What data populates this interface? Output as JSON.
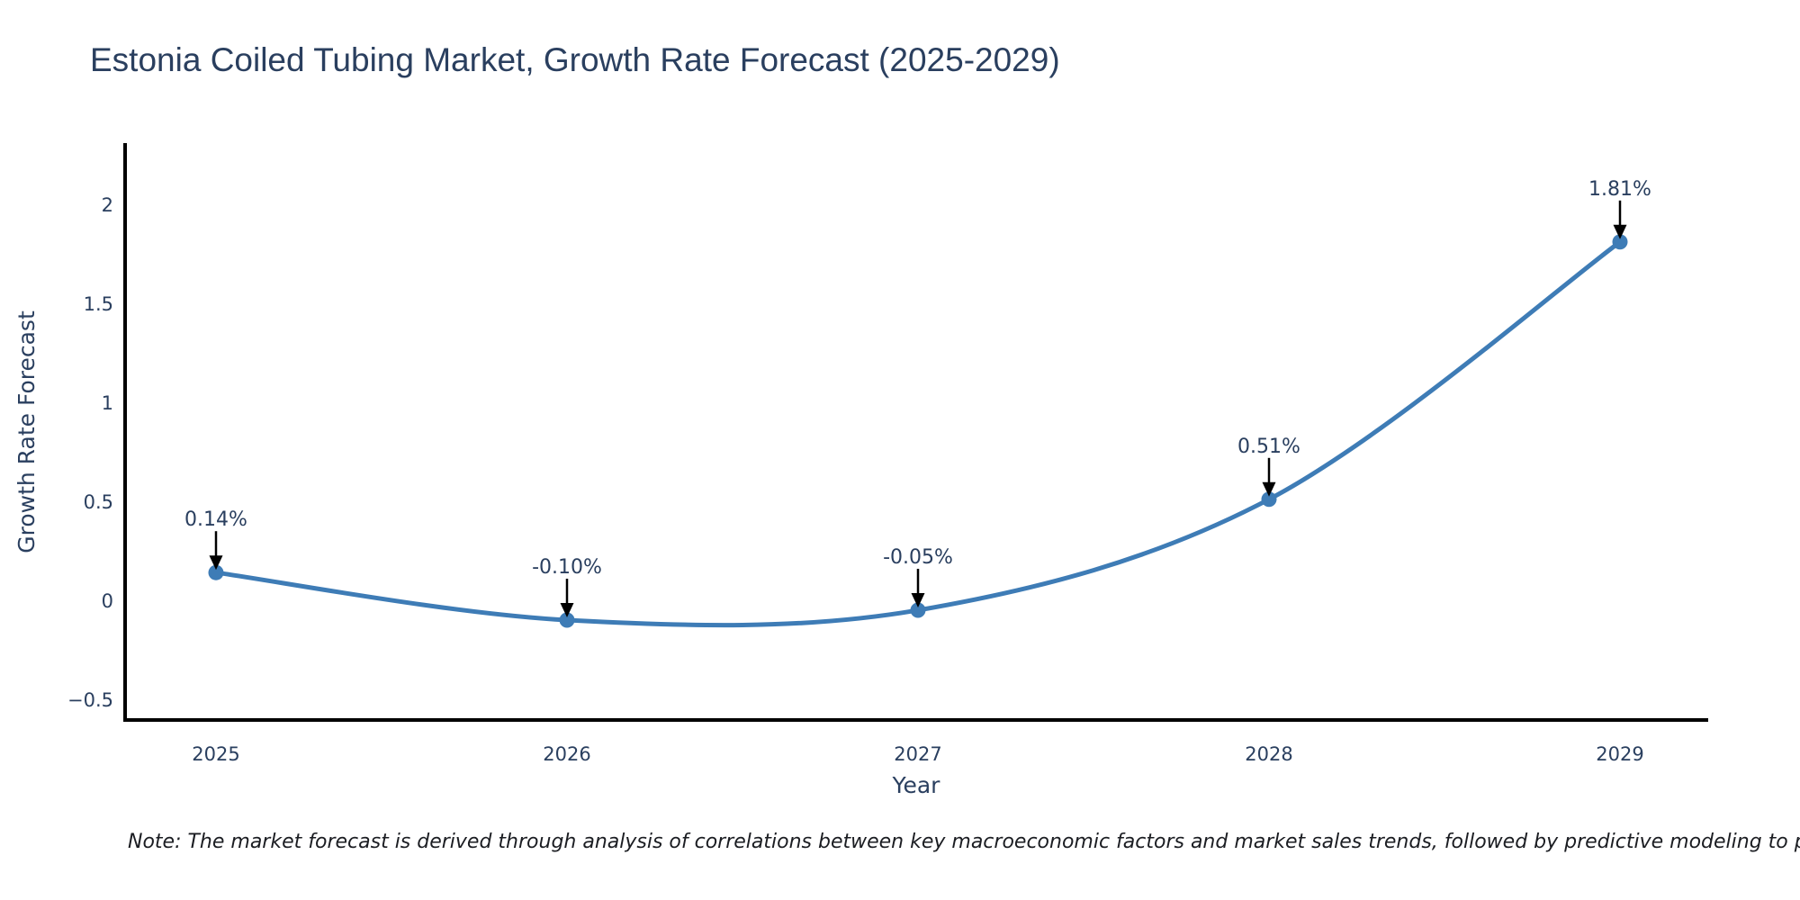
{
  "title": "Estonia Coiled Tubing Market, Growth Rate Forecast (2025-2029)",
  "note": "Note: The market forecast is derived through analysis of correlations between key macroeconomic factors and market sales trends, followed by predictive modeling to project future sales.",
  "chart_data": {
    "type": "line",
    "title": "Estonia Coiled Tubing Market, Growth Rate Forecast (2025-2029)",
    "xlabel": "Year",
    "ylabel": "Growth Rate Forecast",
    "x": [
      2025,
      2026,
      2027,
      2028,
      2029
    ],
    "values": [
      0.14,
      -0.1,
      -0.05,
      0.51,
      1.81
    ],
    "point_labels": [
      "0.14%",
      "-0.10%",
      "-0.05%",
      "0.51%",
      "1.81%"
    ],
    "xtick_labels": [
      "2025",
      "2026",
      "2027",
      "2028",
      "2029"
    ],
    "ytick_values": [
      2,
      1.5,
      1,
      0.5,
      0,
      -0.5
    ],
    "ytick_labels": [
      "2",
      "1.5",
      "1",
      "0.5",
      "0",
      "−0.5"
    ],
    "xlim": [
      2024.74,
      2029.25
    ],
    "ylim": [
      -0.605,
      2.31
    ],
    "line_shape": "spline",
    "grid": false,
    "legend": "none",
    "colors": {
      "line": "#3e7cb6",
      "marker": "#3e7cb6",
      "axis_text": "#2a3f5f",
      "spine": "#000000",
      "annotation_arrow": "#000000",
      "note_text": "#1b1d22",
      "background": "#ffffff"
    }
  }
}
